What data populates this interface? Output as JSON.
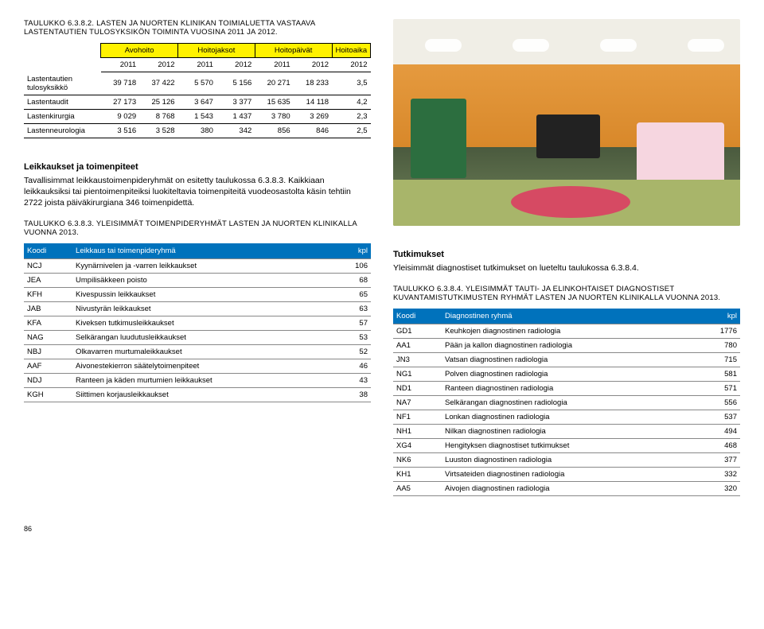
{
  "left": {
    "table1": {
      "title": "TAULUKKO 6.3.8.2. LASTEN JA NUORTEN KLINIKAN TOIMIALUETTA VASTAAVA LASTENTAUTIEN TULOSYKSIKÖN TOIMINTA VUOSINA 2011 JA 2012.",
      "groupHeaders": [
        "Avohoito",
        "Hoitojaksot",
        "Hoitopäivät",
        "Hoitoaika"
      ],
      "yearHeaders": [
        "2011",
        "2012",
        "2011",
        "2012",
        "2011",
        "2012",
        "2012"
      ],
      "rows": [
        {
          "label": "Lastentautien tulosyksikkö",
          "cells": [
            "39 718",
            "37 422",
            "5 570",
            "5 156",
            "20 271",
            "18 233",
            "3,5"
          ]
        },
        {
          "label": "Lastentaudit",
          "cells": [
            "27 173",
            "25 126",
            "3 647",
            "3 377",
            "15 635",
            "14 118",
            "4,2"
          ]
        },
        {
          "label": "Lastenkirurgia",
          "cells": [
            "9 029",
            "8 768",
            "1 543",
            "1 437",
            "3 780",
            "3 269",
            "2,3"
          ]
        },
        {
          "label": "Lastenneurologia",
          "cells": [
            "3 516",
            "3 528",
            "380",
            "342",
            "856",
            "846",
            "2,5"
          ]
        }
      ]
    },
    "sectionHead": "Leikkaukset ja toimenpiteet",
    "bodyText": "Tavallisimmat leikkaustoimenpideryhmät on esitetty taulukossa 6.3.8.3. Kaikkiaan leikkauksiksi tai pientoimenpiteiksi luokiteltavia toimenpiteitä vuodeosastolta käsin tehtiin 2722 joista päiväkirurgiana 346 toimenpidettä.",
    "table2": {
      "title": "TAULUKKO 6.3.8.3. YLEISIMMÄT TOIMENPIDERYHMÄT LASTEN JA NUORTEN KLINIKALLA VUONNA 2013.",
      "headers": [
        "Koodi",
        "Leikkaus tai toimenpideryhmä",
        "kpl"
      ],
      "rows": [
        [
          "NCJ",
          "Kyynärnivelen ja -varren leikkaukset",
          "106"
        ],
        [
          "JEA",
          "Umpilisäkkeen poisto",
          "68"
        ],
        [
          "KFH",
          "Kivespussin leikkaukset",
          "65"
        ],
        [
          "JAB",
          "Nivustyrän leikkaukset",
          "63"
        ],
        [
          "KFA",
          "Kiveksen tutkimusleikkaukset",
          "57"
        ],
        [
          "NAG",
          "Selkärangan luudutusleikkaukset",
          "53"
        ],
        [
          "NBJ",
          "Olkavarren murtumaleikkaukset",
          "52"
        ],
        [
          "AAF",
          "Aivonestekierron säätelytoimenpiteet",
          "46"
        ],
        [
          "NDJ",
          "Ranteen ja käden murtumien leikkaukset",
          "43"
        ],
        [
          "KGH",
          "Siittimen korjausleikkaukset",
          "38"
        ]
      ]
    }
  },
  "right": {
    "sectionHead": "Tutkimukset",
    "bodyText": "Yleisimmät diagnostiset tutkimukset on lueteltu taulukossa 6.3.8.4.",
    "table3": {
      "title": "TAULUKKO 6.3.8.4. YLEISIMMÄT TAUTI- JA ELINKOHTAISET DIAGNOSTISET KUVANTAMISTUTKIMUSTEN RYHMÄT LASTEN JA NUORTEN KLINIKALLA VUONNA 2013.",
      "headers": [
        "Koodi",
        "Diagnostinen ryhmä",
        "kpl"
      ],
      "rows": [
        [
          "GD1",
          "Keuhkojen diagnostinen radiologia",
          "1776"
        ],
        [
          "AA1",
          "Pään ja kallon diagnostinen radiologia",
          "780"
        ],
        [
          "JN3",
          "Vatsan diagnostinen radiologia",
          "715"
        ],
        [
          "NG1",
          "Polven diagnostinen radiologia",
          "581"
        ],
        [
          "ND1",
          "Ranteen diagnostinen radiologia",
          "571"
        ],
        [
          "NA7",
          "Selkärangan diagnostinen radiologia",
          "556"
        ],
        [
          "NF1",
          "Lonkan diagnostinen radiologia",
          "537"
        ],
        [
          "NH1",
          "Nilkan diagnostinen radiologia",
          "494"
        ],
        [
          "XG4",
          "Hengityksen diagnostiset tutkimukset",
          "468"
        ],
        [
          "NK6",
          "Luuston diagnostinen radiologia",
          "377"
        ],
        [
          "KH1",
          "Virtsateiden diagnostinen radiologia",
          "332"
        ],
        [
          "AA5",
          "Aivojen diagnostinen radiologia",
          "320"
        ]
      ]
    }
  },
  "pageNumber": "86"
}
